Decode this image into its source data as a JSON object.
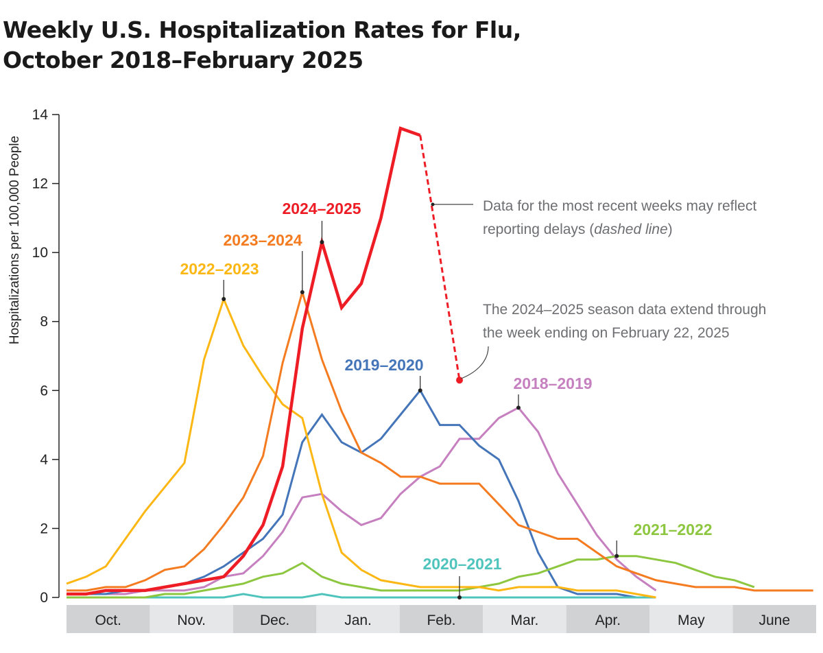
{
  "title": "Weekly U.S. Hospitalization Rates for Flu, October 2018–February 2025",
  "title_lines": [
    "Weekly U.S. Hospitalization Rates for Flu,",
    "October 2018–February 2025"
  ],
  "chart_data": {
    "type": "line",
    "title": "Weekly U.S. Hospitalization Rates for Flu, October 2018–February 2025",
    "xlabel": "",
    "ylabel": "Hospitalizations per 100,000 People",
    "ylim": [
      0,
      14
    ],
    "yticks": [
      "0",
      "2",
      "4",
      "6",
      "8",
      "10",
      "12",
      "14"
    ],
    "x_unit": "week of season (starting October)",
    "x_month_labels": [
      "Oct.",
      "Nov.",
      "Dec.",
      "Jan.",
      "Feb.",
      "Mar.",
      "Apr.",
      "May",
      "June"
    ],
    "grid": false,
    "legend": "direct labels",
    "series": [
      {
        "name": "2018–2019",
        "color": "#c67fbf",
        "values": [
          0.1,
          0.1,
          0.1,
          0.1,
          0.2,
          0.2,
          0.2,
          0.3,
          0.6,
          0.7,
          1.2,
          1.9,
          2.9,
          3.0,
          2.5,
          2.1,
          2.3,
          3.0,
          3.5,
          3.8,
          4.6,
          4.6,
          5.2,
          5.5,
          4.8,
          3.6,
          2.7,
          1.8,
          1.1,
          0.6,
          0.2
        ]
      },
      {
        "name": "2019–2020",
        "color": "#4575b9",
        "values": [
          0.1,
          0.1,
          0.1,
          0.2,
          0.2,
          0.3,
          0.4,
          0.6,
          0.9,
          1.3,
          1.7,
          2.4,
          4.5,
          5.3,
          4.5,
          4.2,
          4.6,
          5.3,
          6.0,
          5.0,
          5.0,
          4.4,
          4.0,
          2.8,
          1.3,
          0.3,
          0.1,
          0.1,
          0.1,
          0.0,
          0.0
        ]
      },
      {
        "name": "2020–2021",
        "color": "#4fc4bd",
        "values": [
          0,
          0,
          0,
          0,
          0,
          0,
          0,
          0,
          0,
          0.1,
          0,
          0,
          0,
          0.1,
          0,
          0,
          0,
          0,
          0,
          0,
          0,
          0,
          0,
          0,
          0,
          0,
          0,
          0,
          0,
          0,
          0
        ]
      },
      {
        "name": "2021–2022",
        "color": "#8dc63f",
        "values": [
          0,
          0,
          0,
          0,
          0,
          0.1,
          0.1,
          0.2,
          0.3,
          0.4,
          0.6,
          0.7,
          1.0,
          0.6,
          0.4,
          0.3,
          0.2,
          0.2,
          0.2,
          0.2,
          0.2,
          0.3,
          0.4,
          0.6,
          0.7,
          0.9,
          1.1,
          1.1,
          1.2,
          1.2,
          1.1,
          1.0,
          0.8,
          0.6,
          0.5,
          0.3
        ]
      },
      {
        "name": "2022–2023",
        "color": "#fdb714",
        "values": [
          0.4,
          0.6,
          0.9,
          1.7,
          2.5,
          3.2,
          3.9,
          6.9,
          8.65,
          7.3,
          6.4,
          5.6,
          5.2,
          3.0,
          1.3,
          0.8,
          0.5,
          0.4,
          0.3,
          0.3,
          0.3,
          0.3,
          0.2,
          0.3,
          0.3,
          0.3,
          0.2,
          0.2,
          0.2,
          0.1,
          0.0
        ]
      },
      {
        "name": "2023–2024",
        "color": "#f47b20",
        "values": [
          0.2,
          0.2,
          0.3,
          0.3,
          0.5,
          0.8,
          0.9,
          1.4,
          2.1,
          2.9,
          4.1,
          6.8,
          8.85,
          6.9,
          5.4,
          4.2,
          3.9,
          3.5,
          3.5,
          3.3,
          3.3,
          3.3,
          2.7,
          2.1,
          1.9,
          1.7,
          1.7,
          1.3,
          0.9,
          0.7,
          0.5,
          0.4,
          0.3,
          0.3,
          0.3,
          0.2,
          0.2,
          0.2,
          0.2
        ]
      },
      {
        "name": "2024–2025",
        "color": "#ee1c25",
        "values": [
          0.1,
          0.1,
          0.2,
          0.2,
          0.2,
          0.3,
          0.4,
          0.5,
          0.6,
          1.2,
          2.1,
          3.8,
          7.8,
          10.3,
          8.4,
          9.1,
          11.0,
          13.6,
          13.4
        ],
        "dashed_values": [
          13.4,
          9.9,
          6.3
        ]
      }
    ],
    "annotations": [
      {
        "text_lines": [
          "Data for the most recent weeks may reflect",
          "reporting delays ("
        ],
        "italic": "dashed line",
        "closing": ")"
      },
      {
        "text_lines": [
          "The 2024–2025 season data extend through",
          "the week ending on February 22, 2025"
        ]
      }
    ]
  }
}
